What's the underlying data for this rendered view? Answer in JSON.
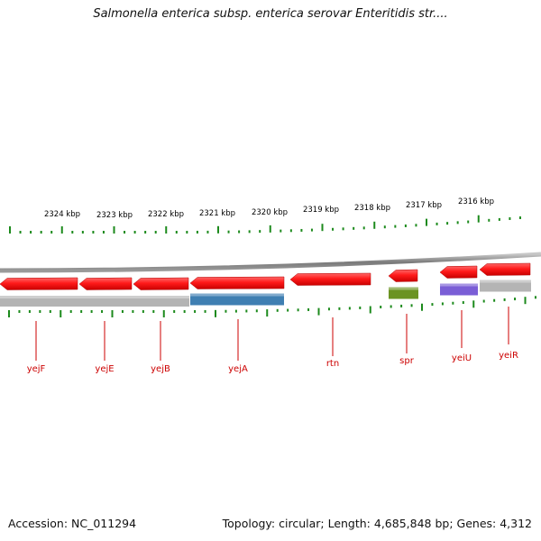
{
  "title": "Salmonella enterica subsp. enterica serovar Enteritidis str....",
  "footer": {
    "accession": "Accession: NC_011294",
    "summary": "Topology: circular; Length: 4,685,848 bp; Genes: 4,312"
  },
  "colors": {
    "backbone": "#8a8a8a",
    "tick": "#1c8a1c",
    "label_line": "#cc0000",
    "gene_red": "#ff1a1a",
    "cog_gray": "#b4b4b4",
    "cog_blue": "#3f7fb2",
    "cog_green": "#6b9322",
    "cog_purple": "#7a5ed6"
  },
  "kbp_labels": [
    "2324 kbp",
    "2323 kbp",
    "2322 kbp",
    "2321 kbp",
    "2320 kbp",
    "2319 kbp",
    "2318 kbp",
    "2317 kbp",
    "2316 kbp"
  ],
  "genes": [
    {
      "name": "yejF",
      "strand": "reverse",
      "cog": "gray"
    },
    {
      "name": "yejE",
      "strand": "reverse",
      "cog": "gray"
    },
    {
      "name": "yejB",
      "strand": "reverse",
      "cog": "gray"
    },
    {
      "name": "yejA",
      "strand": "reverse",
      "cog": "blue"
    },
    {
      "name": "rtn",
      "strand": "reverse",
      "cog": "none"
    },
    {
      "name": "spr",
      "strand": "reverse",
      "cog": "green"
    },
    {
      "name": "yeiU",
      "strand": "reverse",
      "cog": "purple"
    },
    {
      "name": "yeiR",
      "strand": "reverse",
      "cog": "gray"
    }
  ]
}
